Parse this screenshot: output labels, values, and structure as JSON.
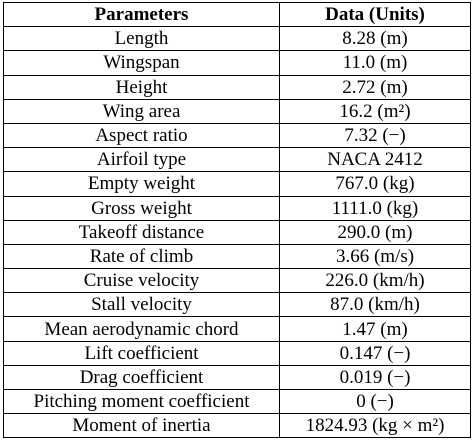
{
  "table": {
    "header": [
      "Parameters",
      "Data (Units)"
    ],
    "rows": [
      [
        "Length",
        "8.28 (m)"
      ],
      [
        "Wingspan",
        "11.0 (m)"
      ],
      [
        "Height",
        "2.72 (m)"
      ],
      [
        "Wing area",
        "16.2 (m²)"
      ],
      [
        "Aspect ratio",
        "7.32 (−)"
      ],
      [
        "Airfoil type",
        "NACA 2412"
      ],
      [
        "Empty weight",
        "767.0 (kg)"
      ],
      [
        "Gross weight",
        "1111.0 (kg)"
      ],
      [
        "Takeoff distance",
        "290.0 (m)"
      ],
      [
        "Rate of climb",
        "3.66 (m/s)"
      ],
      [
        "Cruise velocity",
        "226.0 (km/h)"
      ],
      [
        "Stall velocity",
        "87.0 (km/h)"
      ],
      [
        "Mean aerodynamic chord",
        "1.47 (m)"
      ],
      [
        "Lift coefficient",
        "0.147 (−)"
      ],
      [
        "Drag coefficient",
        "0.019 (−)"
      ],
      [
        "Pitching moment coefficient",
        "0 (−)"
      ],
      [
        "Moment of inertia",
        "1824.93 (kg × m²)"
      ]
    ]
  }
}
